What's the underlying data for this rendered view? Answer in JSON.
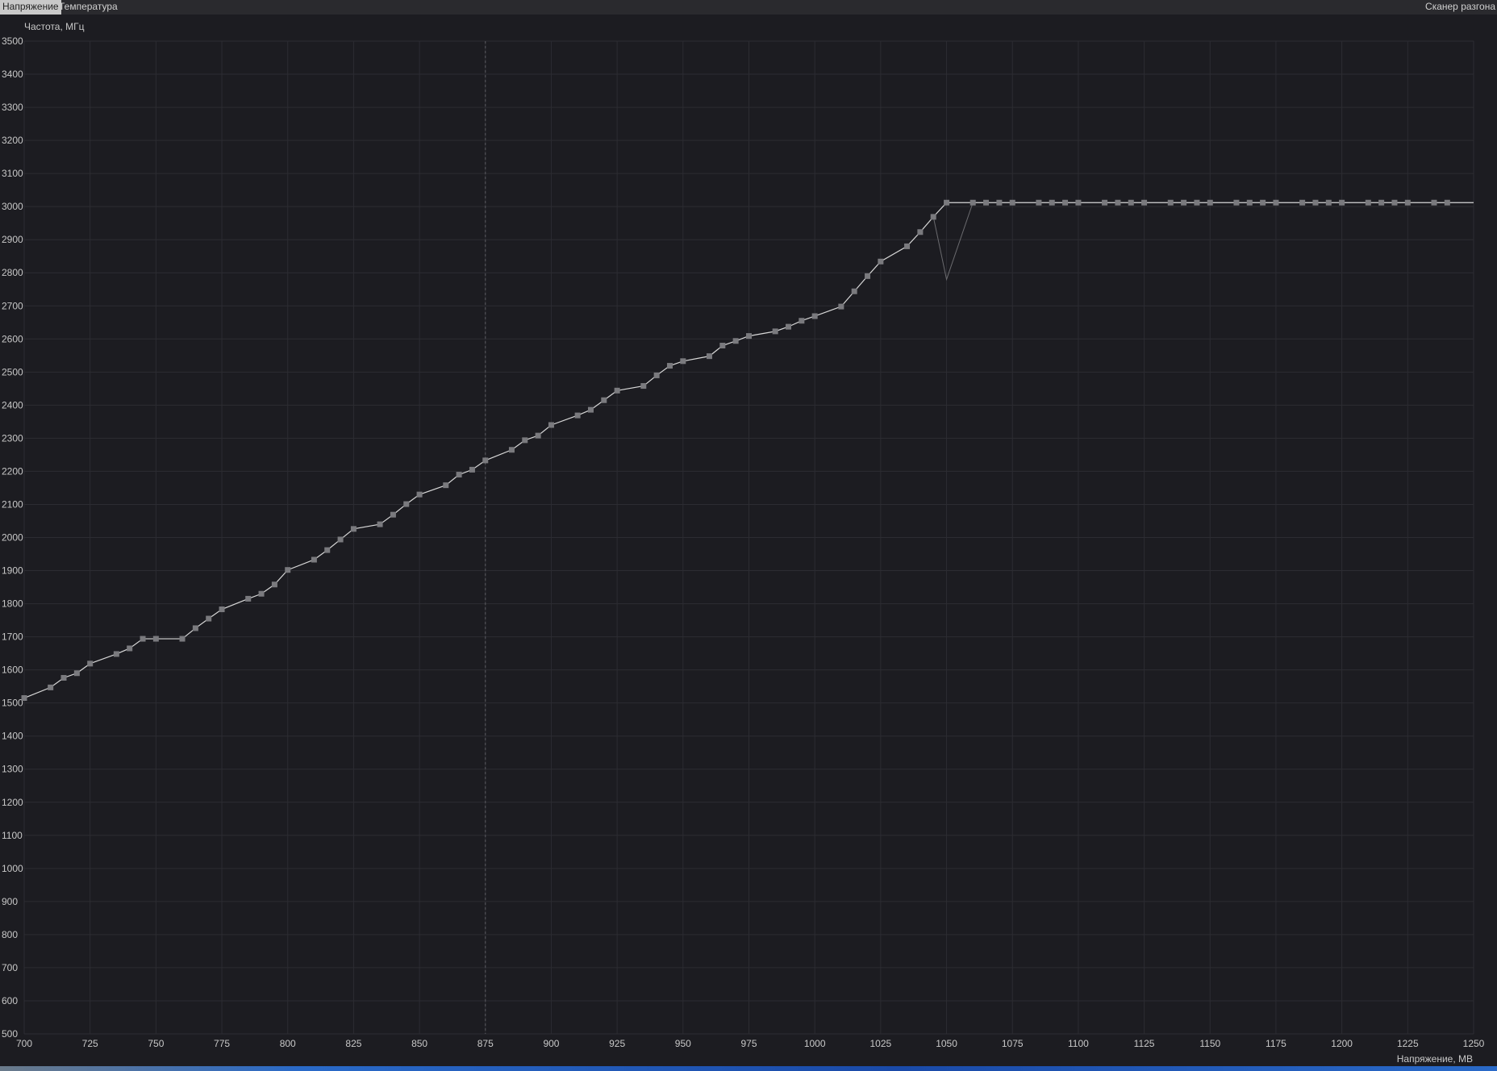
{
  "tabs": [
    {
      "label": "Напряжение",
      "active": true
    },
    {
      "label": "Температура",
      "active": false
    }
  ],
  "scanner_button": "Сканер разгона",
  "chart_data": {
    "type": "line",
    "ylabel": "Частота, МГц",
    "xlabel": "Напряжение, МВ",
    "xlim": [
      700,
      1250
    ],
    "ylim": [
      500,
      3500
    ],
    "xticks": [
      700,
      725,
      750,
      775,
      800,
      825,
      850,
      875,
      900,
      925,
      950,
      975,
      1000,
      1025,
      1050,
      1075,
      1100,
      1125,
      1150,
      1175,
      1200,
      1225,
      1250
    ],
    "yticks": [
      500,
      600,
      700,
      800,
      900,
      1000,
      1100,
      1200,
      1300,
      1400,
      1500,
      1600,
      1700,
      1800,
      1900,
      2000,
      2100,
      2200,
      2300,
      2400,
      2500,
      2600,
      2700,
      2800,
      2900,
      3000,
      3100,
      3200,
      3300,
      3400,
      3500
    ],
    "grid": true,
    "marker_voltage": 875,
    "line_end_x": 1250,
    "series": [
      {
        "points": [
          [
            700,
            1515
          ],
          [
            710,
            1547
          ],
          [
            715,
            1576
          ],
          [
            720,
            1590
          ],
          [
            725,
            1619
          ],
          [
            735,
            1648
          ],
          [
            740,
            1665
          ],
          [
            745,
            1694
          ],
          [
            750,
            1694
          ],
          [
            760,
            1694
          ],
          [
            765,
            1726
          ],
          [
            770,
            1755
          ],
          [
            775,
            1783
          ],
          [
            785,
            1815
          ],
          [
            790,
            1830
          ],
          [
            795,
            1858
          ],
          [
            800,
            1902
          ],
          [
            810,
            1933
          ],
          [
            815,
            1962
          ],
          [
            820,
            1994
          ],
          [
            825,
            2026
          ],
          [
            835,
            2040
          ],
          [
            840,
            2069
          ],
          [
            845,
            2101
          ],
          [
            850,
            2130
          ],
          [
            860,
            2158
          ],
          [
            865,
            2190
          ],
          [
            870,
            2205
          ],
          [
            875,
            2233
          ],
          [
            885,
            2265
          ],
          [
            890,
            2294
          ],
          [
            895,
            2308
          ],
          [
            900,
            2340
          ],
          [
            910,
            2369
          ],
          [
            915,
            2386
          ],
          [
            920,
            2415
          ],
          [
            925,
            2444
          ],
          [
            935,
            2458
          ],
          [
            940,
            2490
          ],
          [
            945,
            2519
          ],
          [
            950,
            2533
          ],
          [
            960,
            2548
          ],
          [
            965,
            2580
          ],
          [
            970,
            2594
          ],
          [
            975,
            2609
          ],
          [
            985,
            2623
          ],
          [
            990,
            2637
          ],
          [
            995,
            2655
          ],
          [
            1000,
            2669
          ],
          [
            1010,
            2698
          ],
          [
            1015,
            2744
          ],
          [
            1020,
            2790
          ],
          [
            1025,
            2834
          ],
          [
            1035,
            2880
          ],
          [
            1040,
            2923
          ],
          [
            1045,
            2969
          ],
          [
            1050,
            3012
          ],
          [
            1060,
            3012
          ],
          [
            1065,
            3012
          ],
          [
            1070,
            3012
          ],
          [
            1075,
            3012
          ],
          [
            1085,
            3012
          ],
          [
            1090,
            3012
          ],
          [
            1095,
            3012
          ],
          [
            1100,
            3012
          ],
          [
            1110,
            3012
          ],
          [
            1115,
            3012
          ],
          [
            1120,
            3012
          ],
          [
            1125,
            3012
          ],
          [
            1135,
            3012
          ],
          [
            1140,
            3012
          ],
          [
            1145,
            3012
          ],
          [
            1150,
            3012
          ],
          [
            1160,
            3012
          ],
          [
            1165,
            3012
          ],
          [
            1170,
            3012
          ],
          [
            1175,
            3012
          ],
          [
            1185,
            3012
          ],
          [
            1190,
            3012
          ],
          [
            1195,
            3012
          ],
          [
            1200,
            3012
          ],
          [
            1210,
            3012
          ],
          [
            1215,
            3012
          ],
          [
            1220,
            3012
          ],
          [
            1225,
            3012
          ],
          [
            1235,
            3012
          ],
          [
            1240,
            3012
          ]
        ],
        "color": "#d8d8d8",
        "marker_color": "#7a7a7e"
      },
      {
        "points": [
          [
            1045,
            2969
          ],
          [
            1050,
            2780
          ],
          [
            1060,
            3012
          ]
        ],
        "color": "#6a6a6e"
      }
    ]
  }
}
